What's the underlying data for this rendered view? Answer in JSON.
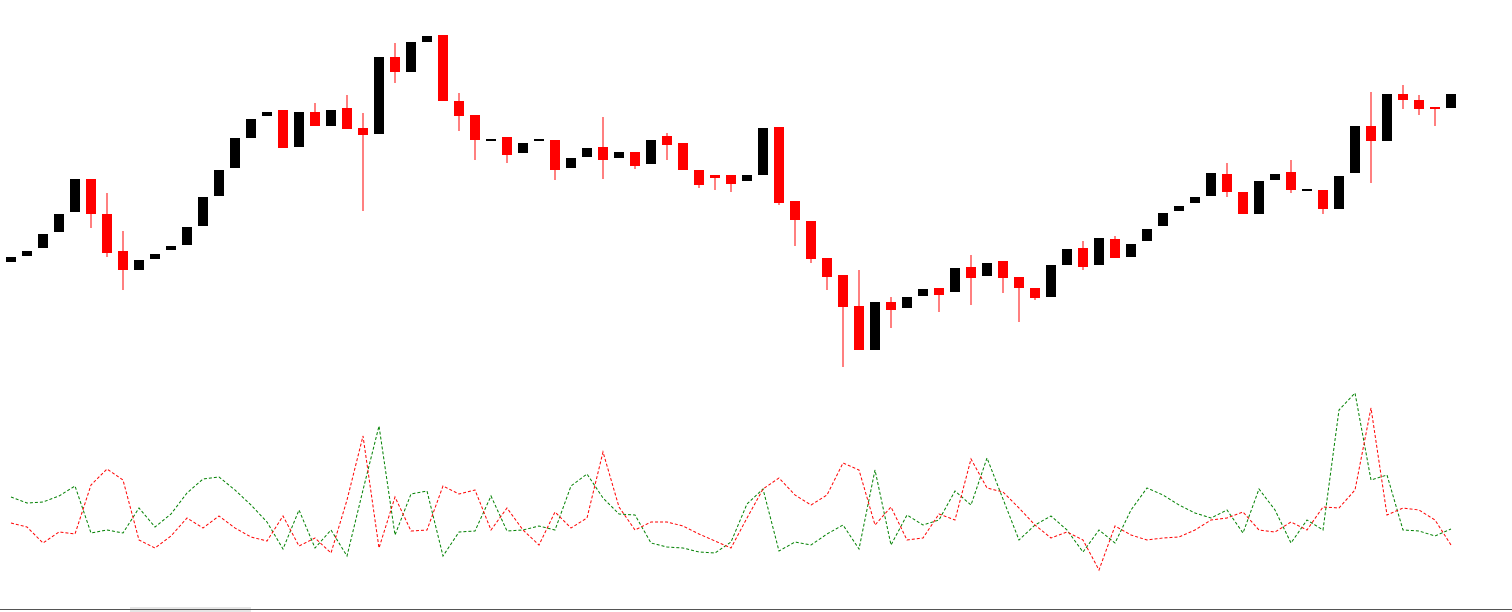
{
  "chart_data": [
    {
      "type": "candlestick",
      "up_color": "#000000",
      "down_color": "#ff0000",
      "ylim": [
        20,
        400
      ],
      "open": [
        138,
        144,
        152,
        168,
        188,
        221,
        186,
        149,
        130,
        141,
        150,
        155,
        174,
        204,
        232,
        262,
        284,
        290,
        253,
        288,
        274,
        292,
        272,
        266,
        343,
        328,
        358,
        365,
        299,
        285,
        259,
        263,
        247,
        259,
        260,
        232,
        243,
        253,
        242,
        248,
        236,
        264,
        257,
        230,
        225,
        225,
        219,
        225,
        273,
        199,
        179,
        142,
        125,
        94,
        50,
        98,
        92,
        104,
        112,
        108,
        133,
        124,
        139,
        123,
        112,
        103,
        135,
        152,
        135,
        161,
        143,
        159,
        174,
        189,
        197,
        204,
        226,
        208,
        186,
        220,
        228,
        209,
        210,
        191,
        227,
        274,
        259,
        306,
        300,
        293,
        292
      ],
      "high": [
        143,
        149,
        166,
        186,
        221,
        221,
        207,
        169,
        140,
        146,
        154,
        173,
        203,
        230,
        262,
        281,
        288,
        290,
        288,
        297,
        290,
        305,
        287,
        343,
        357,
        358,
        364,
        365,
        307,
        285,
        261,
        263,
        257,
        261,
        260,
        242,
        252,
        283,
        248,
        248,
        260,
        267,
        257,
        230,
        225,
        225,
        225,
        272,
        273,
        199,
        179,
        142,
        125,
        130,
        98,
        103,
        103,
        111,
        112,
        132,
        145,
        137,
        139,
        123,
        112,
        135,
        151,
        159,
        162,
        164,
        156,
        171,
        187,
        194,
        203,
        227,
        237,
        208,
        219,
        226,
        240,
        211,
        210,
        224,
        274,
        308,
        306,
        315,
        305,
        293,
        306
      ],
      "low": [
        138,
        144,
        152,
        168,
        188,
        172,
        143,
        110,
        130,
        141,
        150,
        155,
        174,
        204,
        232,
        262,
        284,
        252,
        253,
        274,
        274,
        271,
        189,
        266,
        317,
        328,
        358,
        299,
        269,
        240,
        259,
        237,
        247,
        259,
        220,
        232,
        243,
        221,
        242,
        231,
        236,
        240,
        230,
        212,
        210,
        208,
        219,
        225,
        195,
        154,
        137,
        110,
        33,
        50,
        50,
        72,
        92,
        104,
        88,
        108,
        95,
        124,
        107,
        78,
        100,
        103,
        135,
        130,
        135,
        142,
        143,
        159,
        174,
        189,
        197,
        204,
        203,
        186,
        186,
        220,
        207,
        209,
        186,
        191,
        227,
        217,
        259,
        291,
        285,
        274,
        292
      ],
      "close": [
        143,
        149,
        166,
        186,
        221,
        186,
        147,
        130,
        140,
        146,
        154,
        173,
        203,
        230,
        262,
        281,
        288,
        252,
        288,
        274,
        290,
        271,
        265,
        343,
        328,
        358,
        364,
        299,
        284,
        260,
        261,
        245,
        257,
        261,
        230,
        242,
        252,
        240,
        248,
        234,
        260,
        255,
        230,
        215,
        222,
        216,
        225,
        272,
        197,
        180,
        141,
        123,
        93,
        50,
        98,
        90,
        103,
        111,
        105,
        132,
        122,
        137,
        122,
        112,
        102,
        135,
        151,
        133,
        162,
        142,
        156,
        171,
        187,
        194,
        203,
        227,
        208,
        186,
        219,
        226,
        210,
        211,
        191,
        224,
        274,
        259,
        306,
        300,
        291,
        291,
        306
      ]
    },
    {
      "type": "line",
      "ylim": [
        20,
        220
      ],
      "line_style": "dashed",
      "series": [
        {
          "color": "#008000",
          "values": [
            103,
            97,
            98,
            104,
            114,
            67,
            70,
            67,
            92,
            73,
            86,
            107,
            121,
            123,
            110,
            95,
            78,
            51,
            90,
            52,
            70,
            44,
            110,
            174,
            65,
            106,
            109,
            44,
            68,
            69,
            104,
            69,
            70,
            74,
            70,
            114,
            126,
            102,
            86,
            85,
            57,
            53,
            52,
            48,
            47,
            58,
            96,
            111,
            49,
            58,
            55,
            66,
            75,
            51,
            130,
            55,
            85,
            75,
            80,
            109,
            95,
            142,
            101,
            60,
            75,
            84,
            70,
            48,
            70,
            57,
            90,
            112,
            105,
            95,
            87,
            82,
            90,
            67,
            111,
            90,
            57,
            80,
            70,
            190,
            207,
            120,
            125,
            70,
            69,
            64,
            71
          ]
        },
        {
          "color": "#ff0000",
          "values": [
            77,
            73,
            57,
            68,
            66,
            115,
            131,
            120,
            60,
            52,
            64,
            82,
            72,
            84,
            72,
            63,
            59,
            84,
            54,
            62,
            47,
            100,
            164,
            52,
            103,
            69,
            70,
            114,
            106,
            110,
            70,
            92,
            70,
            55,
            88,
            72,
            82,
            148,
            93,
            70,
            78,
            78,
            74,
            66,
            59,
            52,
            82,
            111,
            122,
            105,
            95,
            105,
            137,
            130,
            75,
            93,
            60,
            62,
            86,
            80,
            141,
            112,
            108,
            92,
            75,
            62,
            68,
            60,
            30,
            74,
            65,
            60,
            62,
            63,
            70,
            80,
            82,
            88,
            70,
            68,
            78,
            70,
            93,
            92,
            110,
            192,
            85,
            92,
            90,
            80,
            55
          ]
        }
      ]
    }
  ]
}
